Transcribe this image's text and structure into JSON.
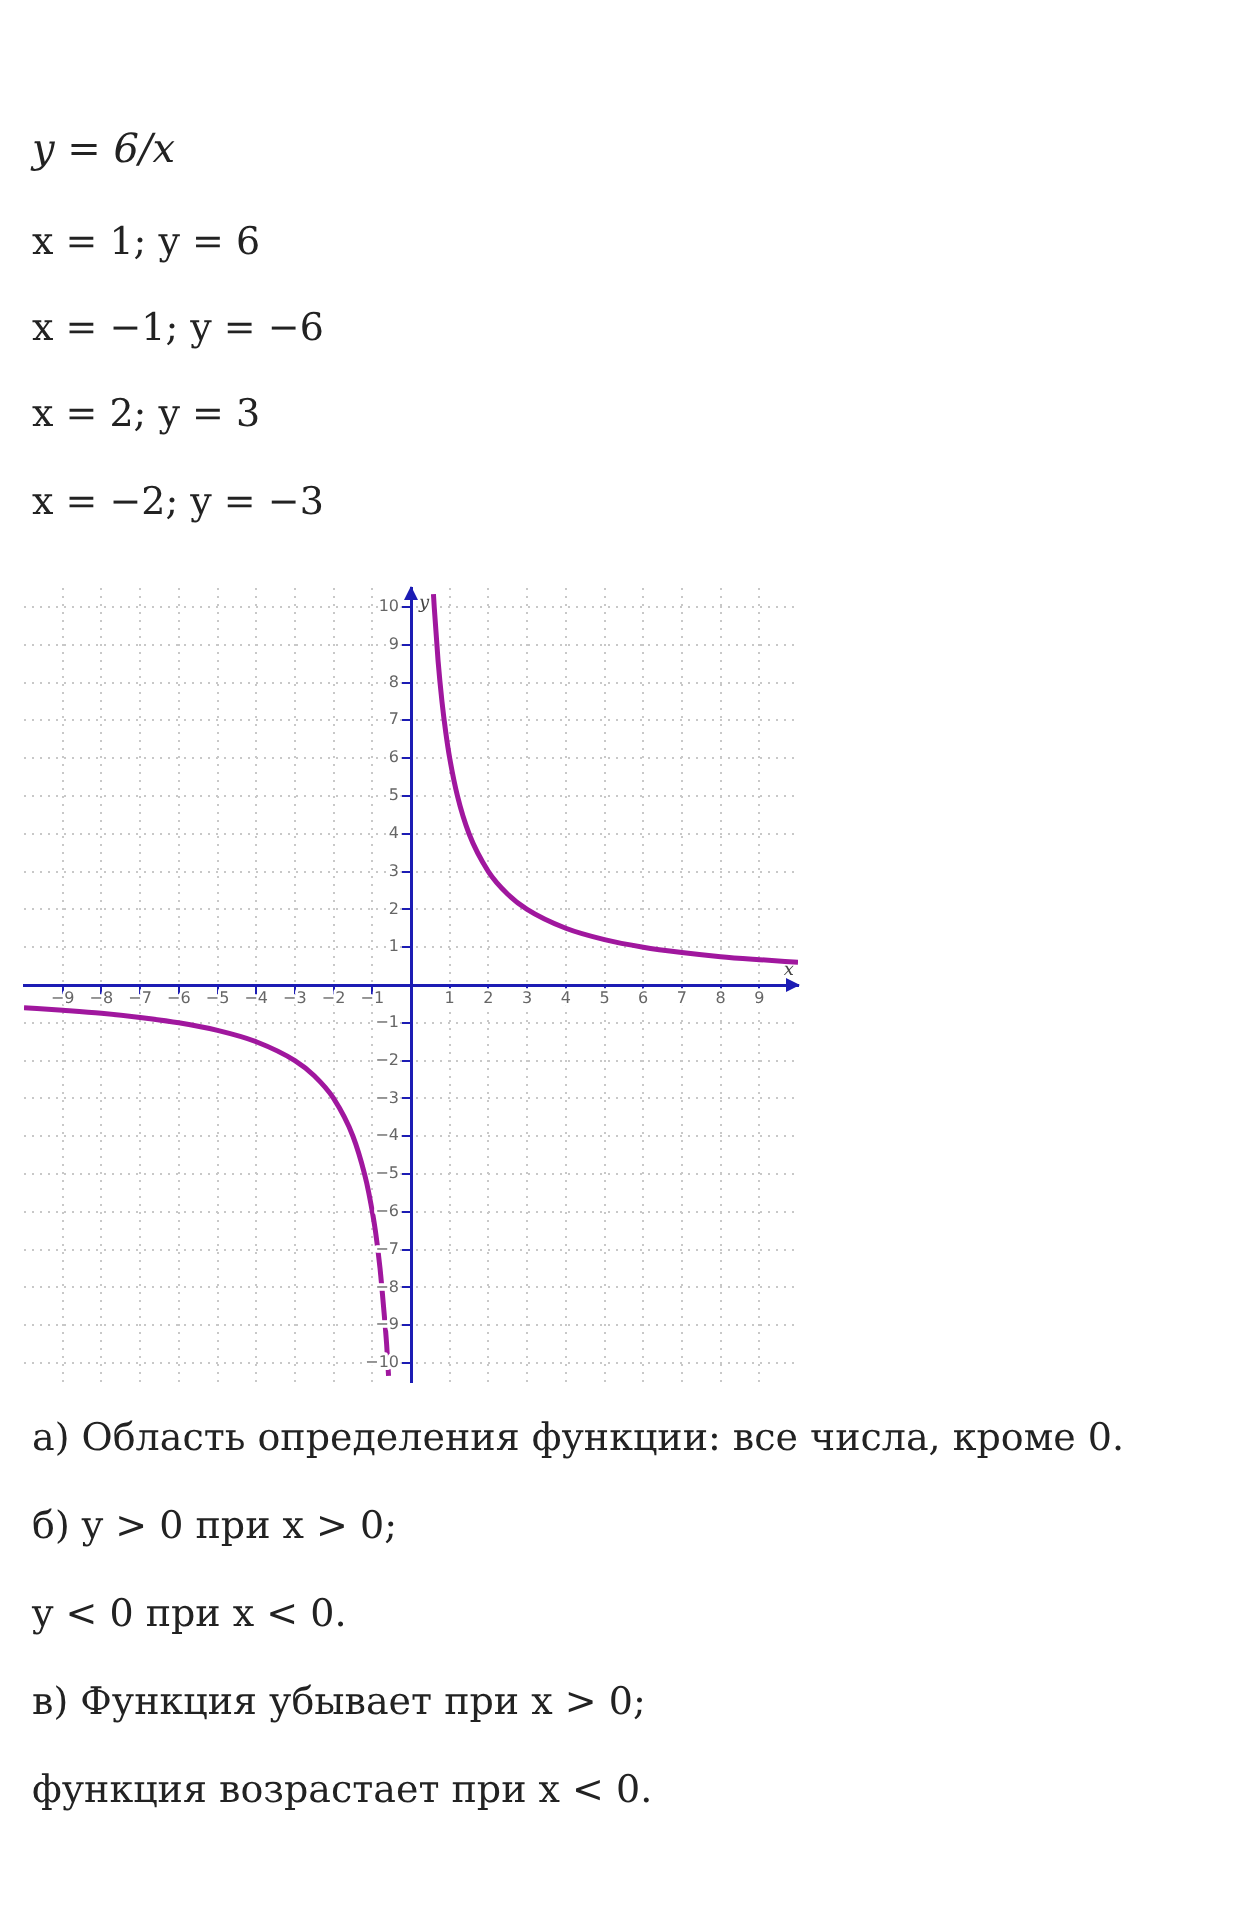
{
  "chart_data": {
    "type": "line",
    "title": "y = 6/x",
    "xlabel": "x",
    "ylabel": "y",
    "annotations": [
      "x = 1;  y = 6",
      "x = −1;  y = −6",
      "x = 2;  y = 3",
      "x = −2;  y = −3",
      "а) Область определения функции:  все числа, кроме 0.",
      "б) y > 0  при x > 0;",
      "y < 0 при x < 0.",
      "в) Функция убывает при x > 0;",
      "функция возрастает при x < 0."
    ],
    "series": [
      {
        "color": "#a0179e",
        "x": [
          0.58,
          0.6,
          0.7,
          0.8,
          0.9,
          1,
          1.2,
          1.5,
          2,
          2.5,
          3,
          4,
          5,
          6,
          7,
          8,
          9,
          10
        ],
        "values": [
          10.34,
          10,
          8.57,
          7.5,
          6.67,
          6,
          5,
          4,
          3,
          2.4,
          2,
          1.5,
          1.2,
          1,
          0.86,
          0.75,
          0.67,
          0.6
        ]
      },
      {
        "color": "#a0179e",
        "x": [
          -10,
          -9,
          -8,
          -7,
          -6,
          -5,
          -4,
          -3,
          -2.5,
          -2,
          -1.5,
          -1.2,
          -1.09,
          -0.92,
          -0.8,
          -0.71,
          -0.63,
          -0.58
        ],
        "values": [
          -0.6,
          -0.67,
          -0.75,
          -0.86,
          -1,
          -1.2,
          -1.5,
          -2,
          -2.4,
          -3,
          -4,
          -5,
          -5.5,
          -6.5,
          -7.5,
          -8.5,
          -9.5,
          -10.34
        ]
      }
    ],
    "xlim": [
      -10,
      10
    ],
    "ylim": [
      -10.5,
      10.5
    ],
    "xticks": [
      -9,
      -8,
      -7,
      -6,
      -5,
      -4,
      -3,
      -2,
      -1,
      1,
      2,
      3,
      4,
      5,
      6,
      7,
      8,
      9
    ],
    "yticks": [
      -10,
      -9,
      -8,
      -7,
      -6,
      -5,
      -4,
      -3,
      -2,
      -1,
      1,
      2,
      3,
      4,
      5,
      6,
      7,
      8,
      9,
      10
    ],
    "grid": true,
    "marker": "none",
    "line_style": "solid",
    "legend": false
  }
}
